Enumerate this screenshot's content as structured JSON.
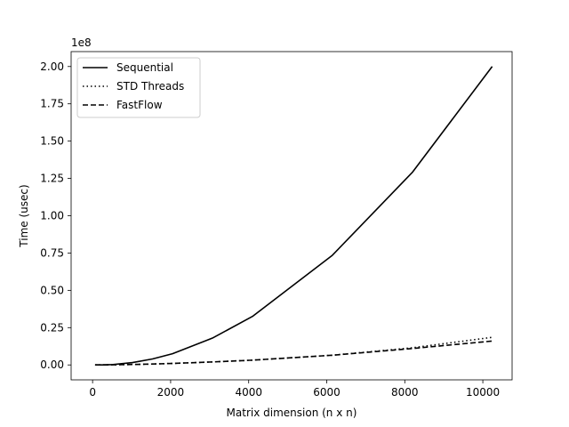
{
  "chart_data": {
    "type": "line",
    "xlabel": "Matrix dimension (n x n)",
    "ylabel": "Time (usec)",
    "y_offset_label": "1e8",
    "xlim": [
      -550,
      10750
    ],
    "ylim": [
      -0.1,
      2.1
    ],
    "x_ticks": [
      0,
      2000,
      4000,
      6000,
      8000,
      10000
    ],
    "x_tick_labels": [
      "0",
      "2000",
      "4000",
      "6000",
      "8000",
      "10000"
    ],
    "y_ticks": [
      0.0,
      0.25,
      0.5,
      0.75,
      1.0,
      1.25,
      1.5,
      1.75,
      2.0
    ],
    "y_tick_labels": [
      "0.00",
      "0.25",
      "0.50",
      "0.75",
      "1.00",
      "1.25",
      "1.50",
      "1.75",
      "2.00"
    ],
    "grid": false,
    "legend_position": "top-left",
    "series": [
      {
        "name": "Sequential",
        "style": "solid",
        "color": "#000000",
        "x": [
          64,
          256,
          512,
          1024,
          1536,
          2048,
          3072,
          4096,
          6144,
          8192,
          10240
        ],
        "y": [
          0.0,
          0.0003,
          0.0025,
          0.016,
          0.04,
          0.075,
          0.18,
          0.325,
          0.735,
          1.29,
          2.0
        ]
      },
      {
        "name": "STD Threads",
        "style": "dotted",
        "color": "#000000",
        "x": [
          64,
          256,
          512,
          1024,
          1536,
          2048,
          3072,
          4096,
          6144,
          8192,
          10240
        ],
        "y": [
          0.0,
          0.0001,
          0.0008,
          0.003,
          0.006,
          0.01,
          0.02,
          0.032,
          0.065,
          0.115,
          0.185
        ]
      },
      {
        "name": "FastFlow",
        "style": "dashed",
        "color": "#000000",
        "x": [
          64,
          256,
          512,
          1024,
          1536,
          2048,
          3072,
          4096,
          6144,
          8192,
          10240
        ],
        "y": [
          0.0,
          0.0001,
          0.0008,
          0.003,
          0.006,
          0.01,
          0.02,
          0.032,
          0.065,
          0.11,
          0.16
        ]
      }
    ]
  }
}
